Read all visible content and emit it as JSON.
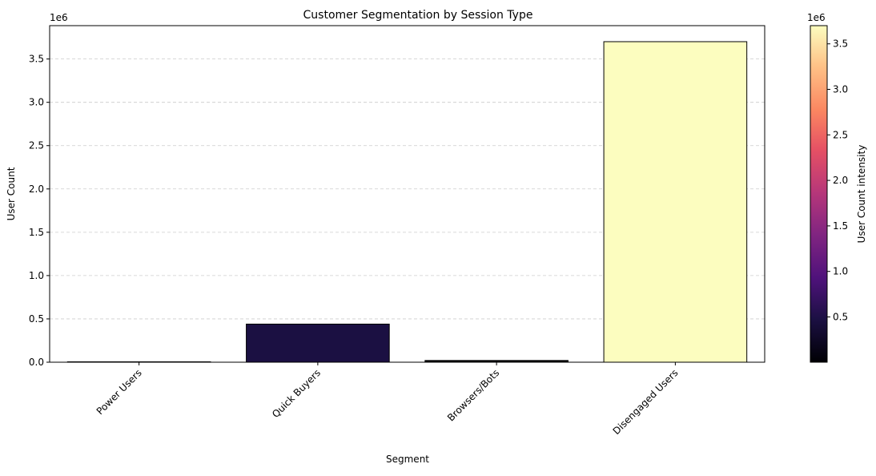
{
  "chart_data": {
    "type": "bar",
    "title": "Customer Segmentation by Session Type",
    "xlabel": "Segment",
    "ylabel": "User Count",
    "y_offset_label": "1e6",
    "categories": [
      "Power Users",
      "Quick Buyers",
      "Browsers/Bots",
      "Disengaged Users"
    ],
    "values": [
      2500,
      440000,
      20000,
      3700000
    ],
    "bar_colors": [
      "#000004",
      "#1b1042",
      "#010005",
      "#fcfdbf"
    ],
    "ylim": [
      0,
      3885000
    ],
    "yticks": [
      0,
      500000,
      1000000,
      1500000,
      2000000,
      2500000,
      3000000,
      3500000
    ],
    "ytick_labels": [
      "0.0",
      "0.5",
      "1.0",
      "1.5",
      "2.0",
      "2.5",
      "3.0",
      "3.5"
    ],
    "grid": "y-dashed",
    "colorbar": {
      "label": "User Count intensity",
      "offset_label": "1e6",
      "colormap": "magma",
      "range": [
        2500,
        3700000
      ],
      "ticks": [
        500000,
        1000000,
        1500000,
        2000000,
        2500000,
        3000000,
        3500000
      ],
      "tick_labels": [
        "0.5",
        "1.0",
        "1.5",
        "2.0",
        "2.5",
        "3.0",
        "3.5"
      ]
    }
  }
}
